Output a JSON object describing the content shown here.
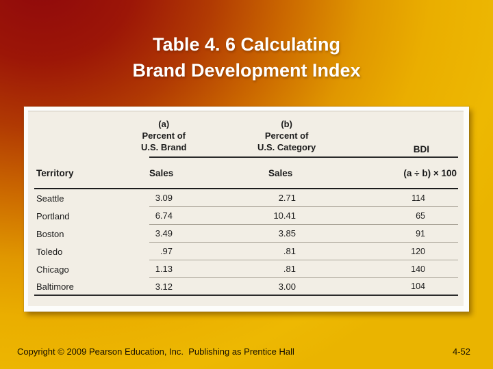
{
  "slide": {
    "title_line1": "Table 4. 6 Calculating",
    "title_line2": "Brand Development Index",
    "footer": {
      "copyright": "Copyright © 2009 Pearson Education, Inc.  Publishing as Prentice Hall",
      "page_number": "4-52"
    },
    "colors": {
      "background_red": "#8f080c",
      "background_gold": "#eab400",
      "title_text": "#ffffff",
      "table_background": "#f2eee5",
      "table_frame": "#fdfdfb",
      "footer_text": "#161000"
    }
  },
  "chart_data": {
    "type": "table",
    "title": "Calculating Brand Development Index",
    "group_headers": {
      "a": "(a)\nPercent of\nU.S. Brand",
      "b": "(b)\nPercent of\nU.S. Category",
      "bdi": "BDI"
    },
    "columns": [
      "Territory",
      "Sales",
      "Sales",
      "(a ÷ b) × 100"
    ],
    "rows": [
      {
        "territory": "Seattle",
        "brand_sales": "3.09",
        "category_sales": "2.71",
        "bdi": "114"
      },
      {
        "territory": "Portland",
        "brand_sales": "6.74",
        "category_sales": "10.41",
        "bdi": "65"
      },
      {
        "territory": "Boston",
        "brand_sales": "3.49",
        "category_sales": "3.85",
        "bdi": "91"
      },
      {
        "territory": "Toledo",
        "brand_sales": ".97",
        "category_sales": ".81",
        "bdi": "120"
      },
      {
        "territory": "Chicago",
        "brand_sales": "1.13",
        "category_sales": ".81",
        "bdi": "140"
      },
      {
        "territory": "Baltimore",
        "brand_sales": "3.12",
        "category_sales": "3.00",
        "bdi": "104"
      }
    ]
  }
}
